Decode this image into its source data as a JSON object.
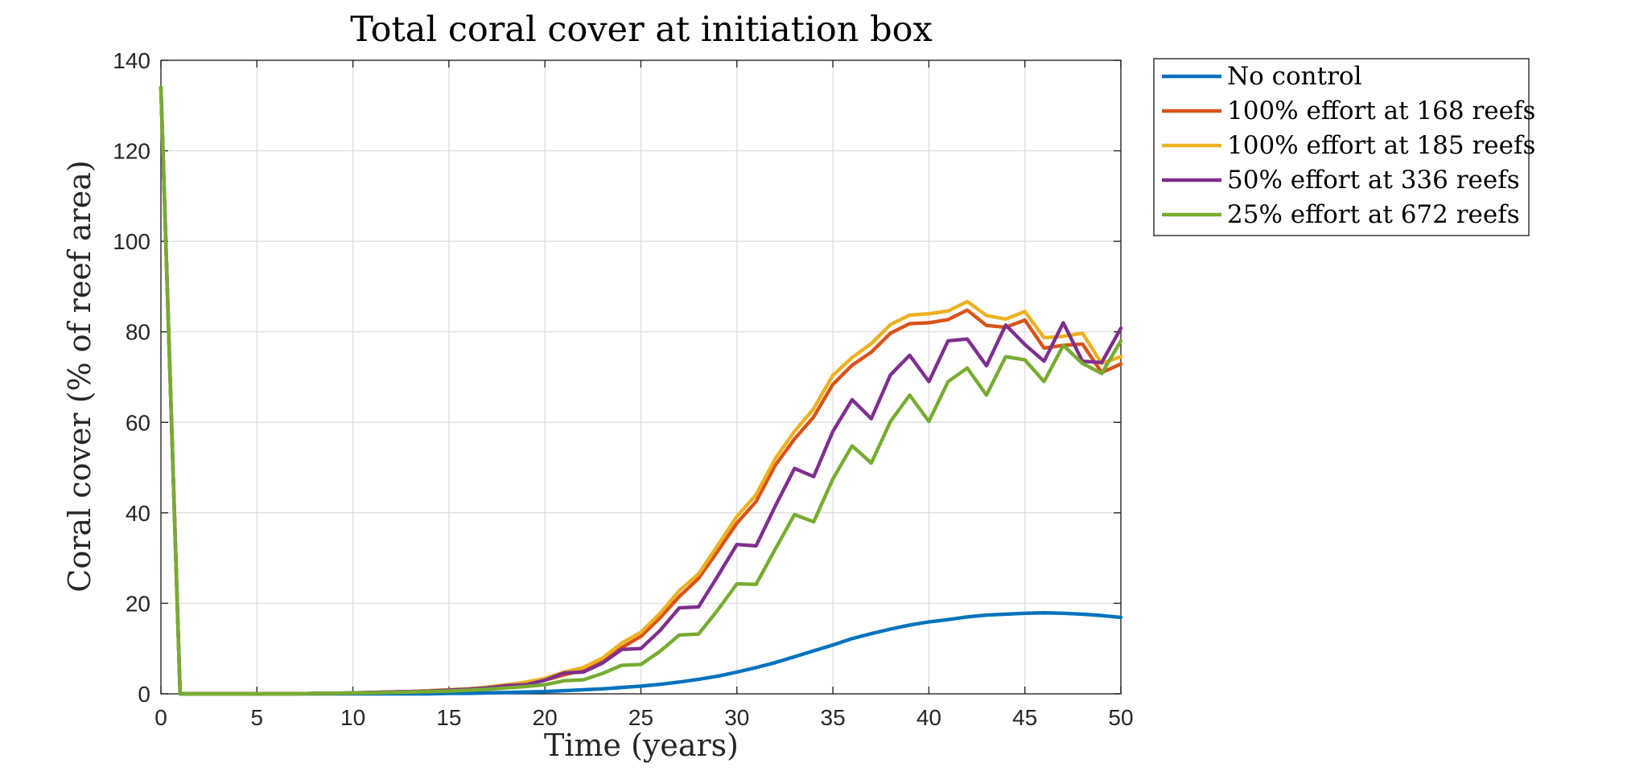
{
  "chart_data": {
    "type": "line",
    "title": "Total coral cover at initiation box",
    "xlabel": "Time (years)",
    "ylabel": "Coral cover (% of reef area)",
    "xlim": [
      0,
      50
    ],
    "ylim": [
      0,
      140
    ],
    "xticks": [
      0,
      5,
      10,
      15,
      20,
      25,
      30,
      35,
      40,
      45,
      50
    ],
    "yticks": [
      0,
      20,
      40,
      60,
      80,
      100,
      120,
      140
    ],
    "grid": true,
    "legend_position": "outside-top-right",
    "x": [
      0,
      1,
      2,
      3,
      4,
      5,
      6,
      7,
      8,
      9,
      10,
      11,
      12,
      13,
      14,
      15,
      16,
      17,
      18,
      19,
      20,
      21,
      22,
      23,
      24,
      25,
      26,
      27,
      28,
      29,
      30,
      31,
      32,
      33,
      34,
      35,
      36,
      37,
      38,
      39,
      40,
      41,
      42,
      43,
      44,
      45,
      46,
      47,
      48,
      49,
      50
    ],
    "series": [
      {
        "name": "No control",
        "color": "#0072BD",
        "values": [
          134,
          0,
          0,
          0,
          0,
          0,
          0,
          0,
          0,
          0,
          0,
          0,
          0,
          0,
          0,
          0.1,
          0.1,
          0.2,
          0.3,
          0.4,
          0.5,
          0.7,
          0.9,
          1.1,
          1.4,
          1.7,
          2.1,
          2.6,
          3.2,
          3.9,
          4.8,
          5.8,
          6.9,
          8.2,
          9.5,
          10.8,
          12.2,
          13.3,
          14.3,
          15.2,
          15.9,
          16.4,
          17.0,
          17.4,
          17.6,
          17.8,
          17.9,
          17.8,
          17.6,
          17.3,
          16.9
        ]
      },
      {
        "name": "100% effort at 168 reefs",
        "color": "#D95319",
        "values": [
          134,
          0,
          0,
          0,
          0,
          0,
          0,
          0,
          0.1,
          0.1,
          0.2,
          0.3,
          0.4,
          0.5,
          0.7,
          0.9,
          1.1,
          1.4,
          1.8,
          2.3,
          3.0,
          4.2,
          5.2,
          7.2,
          10.2,
          12.7,
          16.8,
          21.5,
          25.5,
          31.5,
          37.7,
          42.5,
          50.5,
          56.3,
          61.2,
          68.4,
          72.6,
          75.5,
          79.7,
          81.8,
          82.0,
          82.7,
          84.8,
          81.4,
          81.0,
          82.6,
          76.4,
          77.0,
          77.3,
          71.0,
          72.9
        ]
      },
      {
        "name": "100% effort at 185 reefs",
        "color": "#EDB120",
        "values": [
          134,
          0,
          0,
          0,
          0,
          0,
          0,
          0,
          0.1,
          0.1,
          0.2,
          0.3,
          0.4,
          0.5,
          0.7,
          0.9,
          1.1,
          1.5,
          2.0,
          2.6,
          3.4,
          4.8,
          5.8,
          7.9,
          11.2,
          13.6,
          17.8,
          22.8,
          26.5,
          32.8,
          39.2,
          44.0,
          52.0,
          58.0,
          63.0,
          70.4,
          74.3,
          77.4,
          81.6,
          83.7,
          84.0,
          84.6,
          86.7,
          83.6,
          82.8,
          84.5,
          78.7,
          79.0,
          79.7,
          73.0,
          74.5
        ]
      },
      {
        "name": "50% effort at 336 reefs",
        "color": "#7E2F8E",
        "values": [
          134,
          0,
          0,
          0,
          0,
          0,
          0,
          0,
          0.1,
          0.1,
          0.2,
          0.3,
          0.4,
          0.5,
          0.6,
          0.8,
          1.0,
          1.3,
          1.8,
          2.0,
          3.0,
          4.6,
          4.8,
          6.8,
          9.8,
          10.0,
          14.0,
          19.0,
          19.2,
          26.0,
          33.0,
          32.7,
          41.5,
          49.8,
          48.0,
          58.0,
          65.0,
          60.8,
          70.5,
          74.8,
          69.0,
          78.0,
          78.4,
          72.5,
          81.5,
          77.2,
          73.5,
          82.0,
          73.5,
          73.2,
          80.8
        ]
      },
      {
        "name": "25% effort at 672 reefs",
        "color": "#77AC30",
        "values": [
          134,
          0,
          0,
          0,
          0,
          0,
          0,
          0,
          0.1,
          0.1,
          0.2,
          0.2,
          0.3,
          0.4,
          0.5,
          0.6,
          0.8,
          1.0,
          1.3,
          1.6,
          2.0,
          2.9,
          3.1,
          4.5,
          6.3,
          6.5,
          9.4,
          13.0,
          13.2,
          18.5,
          24.3,
          24.2,
          32.0,
          39.6,
          38.0,
          47.5,
          54.8,
          51.0,
          60.2,
          66.0,
          60.2,
          69.0,
          72.0,
          66.0,
          74.5,
          73.8,
          69.0,
          77.0,
          73.0,
          70.8,
          78.0
        ]
      }
    ]
  }
}
